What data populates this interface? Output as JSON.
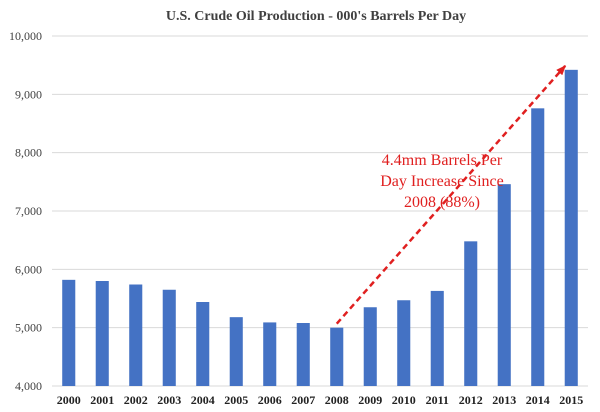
{
  "chart_data": {
    "type": "bar",
    "title": "U.S. Crude Oil Production - 000's  Barrels Per Day",
    "xlabel": "",
    "ylabel": "",
    "categories": [
      "2000",
      "2001",
      "2002",
      "2003",
      "2004",
      "2005",
      "2006",
      "2007",
      "2008",
      "2009",
      "2010",
      "2011",
      "2012",
      "2013",
      "2014",
      "2015"
    ],
    "values": [
      5820,
      5800,
      5740,
      5650,
      5440,
      5180,
      5090,
      5080,
      5000,
      5350,
      5470,
      5630,
      6480,
      7460,
      8760,
      9420
    ],
    "ylim": [
      4000,
      10000
    ],
    "yticks": [
      4000,
      5000,
      6000,
      7000,
      8000,
      9000,
      10000
    ],
    "ytick_labels": [
      "4,000",
      "5,000",
      "6,000",
      "7,000",
      "8,000",
      "9,000",
      "10,000"
    ],
    "grid": true,
    "legend": "none",
    "colors": {
      "bar": "#4472C4",
      "grid": "#D9D9D9",
      "annotation": "#E02020"
    },
    "annotation": {
      "lines": [
        "4.4mm Barrels Per",
        "Day Increase Since",
        "2008 (88%)"
      ],
      "arrow_from": "2008",
      "arrow_to": "2015"
    }
  }
}
